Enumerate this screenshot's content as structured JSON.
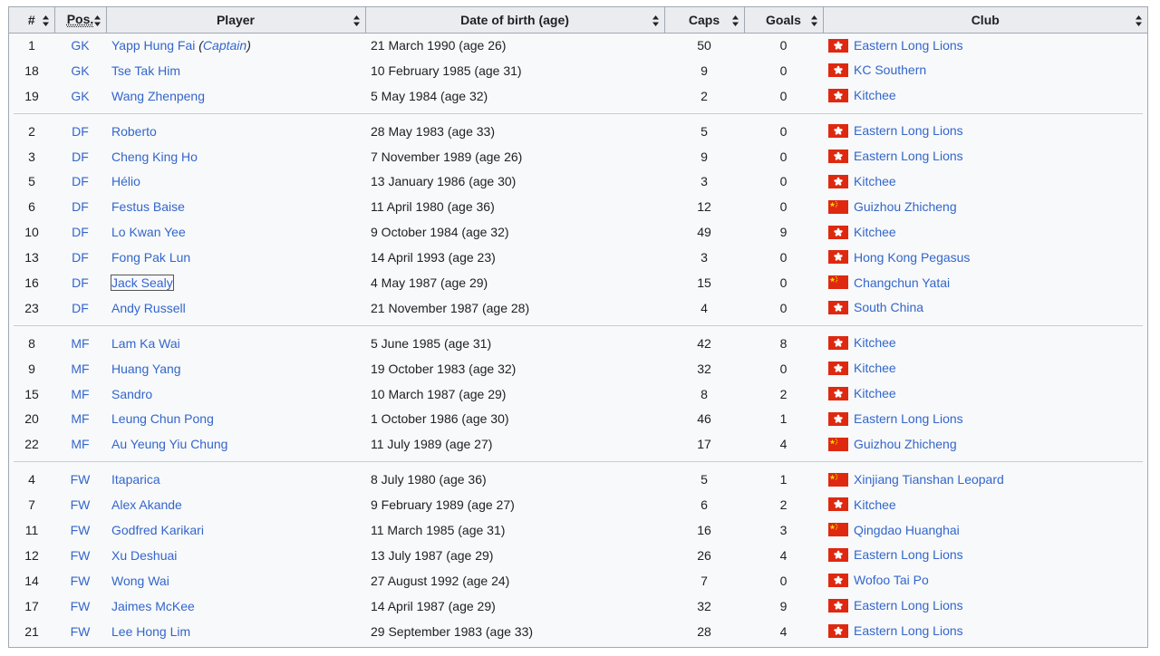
{
  "headers": {
    "num": "#",
    "pos": "Pos.",
    "player": "Player",
    "dob": "Date of birth (age)",
    "caps": "Caps",
    "goals": "Goals",
    "club": "Club"
  },
  "colors": {
    "link": "#3366cc",
    "header_bg": "#eaecf0",
    "border": "#a2a9b1",
    "flag_red": "#de2910",
    "flag_yellow": "#ffde00"
  },
  "groups": [
    [
      {
        "num": "1",
        "pos": "GK",
        "player": "Yapp Hung Fai",
        "note": "Captain",
        "dob": "21 March 1990 (age 26)",
        "caps": "50",
        "goals": "0",
        "flag": "hong-kong",
        "club": "Eastern Long Lions"
      },
      {
        "num": "18",
        "pos": "GK",
        "player": "Tse Tak Him",
        "dob": "10 February 1985 (age 31)",
        "caps": "9",
        "goals": "0",
        "flag": "hong-kong",
        "club": "KC Southern"
      },
      {
        "num": "19",
        "pos": "GK",
        "player": "Wang Zhenpeng",
        "dob": "5 May 1984 (age 32)",
        "caps": "2",
        "goals": "0",
        "flag": "hong-kong",
        "club": "Kitchee"
      }
    ],
    [
      {
        "num": "2",
        "pos": "DF",
        "player": "Roberto",
        "dob": "28 May 1983 (age 33)",
        "caps": "5",
        "goals": "0",
        "flag": "hong-kong",
        "club": "Eastern Long Lions"
      },
      {
        "num": "3",
        "pos": "DF",
        "player": "Cheng King Ho",
        "dob": "7 November 1989 (age 26)",
        "caps": "9",
        "goals": "0",
        "flag": "hong-kong",
        "club": "Eastern Long Lions"
      },
      {
        "num": "5",
        "pos": "DF",
        "player": "Hélio",
        "dob": "13 January 1986 (age 30)",
        "caps": "3",
        "goals": "0",
        "flag": "hong-kong",
        "club": "Kitchee"
      },
      {
        "num": "6",
        "pos": "DF",
        "player": "Festus Baise",
        "dob": "11 April 1980 (age 36)",
        "caps": "12",
        "goals": "0",
        "flag": "china",
        "club": "Guizhou Zhicheng"
      },
      {
        "num": "10",
        "pos": "DF",
        "player": "Lo Kwan Yee",
        "dob": "9 October 1984 (age 32)",
        "caps": "49",
        "goals": "9",
        "flag": "hong-kong",
        "club": "Kitchee"
      },
      {
        "num": "13",
        "pos": "DF",
        "player": "Fong Pak Lun",
        "dob": "14 April 1993 (age 23)",
        "caps": "3",
        "goals": "0",
        "flag": "hong-kong",
        "club": "Hong Kong Pegasus"
      },
      {
        "num": "16",
        "pos": "DF",
        "player": "Jack Sealy",
        "focused": true,
        "dob": "4 May 1987 (age 29)",
        "caps": "15",
        "goals": "0",
        "flag": "china",
        "club": "Changchun Yatai"
      },
      {
        "num": "23",
        "pos": "DF",
        "player": "Andy Russell",
        "dob": "21 November 1987 (age 28)",
        "caps": "4",
        "goals": "0",
        "flag": "hong-kong",
        "club": "South China"
      }
    ],
    [
      {
        "num": "8",
        "pos": "MF",
        "player": "Lam Ka Wai",
        "dob": "5 June 1985 (age 31)",
        "caps": "42",
        "goals": "8",
        "flag": "hong-kong",
        "club": "Kitchee"
      },
      {
        "num": "9",
        "pos": "MF",
        "player": "Huang Yang",
        "dob": "19 October 1983 (age 32)",
        "caps": "32",
        "goals": "0",
        "flag": "hong-kong",
        "club": "Kitchee"
      },
      {
        "num": "15",
        "pos": "MF",
        "player": "Sandro",
        "dob": "10 March 1987 (age 29)",
        "caps": "8",
        "goals": "2",
        "flag": "hong-kong",
        "club": "Kitchee"
      },
      {
        "num": "20",
        "pos": "MF",
        "player": "Leung Chun Pong",
        "dob": "1 October 1986 (age 30)",
        "caps": "46",
        "goals": "1",
        "flag": "hong-kong",
        "club": "Eastern Long Lions"
      },
      {
        "num": "22",
        "pos": "MF",
        "player": "Au Yeung Yiu Chung",
        "dob": "11 July 1989 (age 27)",
        "caps": "17",
        "goals": "4",
        "flag": "china",
        "club": "Guizhou Zhicheng"
      }
    ],
    [
      {
        "num": "4",
        "pos": "FW",
        "player": "Itaparica",
        "dob": "8 July 1980 (age 36)",
        "caps": "5",
        "goals": "1",
        "flag": "china",
        "club": "Xinjiang Tianshan Leopard"
      },
      {
        "num": "7",
        "pos": "FW",
        "player": "Alex Akande",
        "dob": "9 February 1989 (age 27)",
        "caps": "6",
        "goals": "2",
        "flag": "hong-kong",
        "club": "Kitchee"
      },
      {
        "num": "11",
        "pos": "FW",
        "player": "Godfred Karikari",
        "dob": "11 March 1985 (age 31)",
        "caps": "16",
        "goals": "3",
        "flag": "china",
        "club": "Qingdao Huanghai"
      },
      {
        "num": "12",
        "pos": "FW",
        "player": "Xu Deshuai",
        "dob": "13 July 1987 (age 29)",
        "caps": "26",
        "goals": "4",
        "flag": "hong-kong",
        "club": "Eastern Long Lions"
      },
      {
        "num": "14",
        "pos": "FW",
        "player": "Wong Wai",
        "dob": "27 August 1992 (age 24)",
        "caps": "7",
        "goals": "0",
        "flag": "hong-kong",
        "club": "Wofoo Tai Po"
      },
      {
        "num": "17",
        "pos": "FW",
        "player": "Jaimes McKee",
        "dob": "14 April 1987 (age 29)",
        "caps": "32",
        "goals": "9",
        "flag": "hong-kong",
        "club": "Eastern Long Lions"
      },
      {
        "num": "21",
        "pos": "FW",
        "player": "Lee Hong Lim",
        "dob": "29 September 1983 (age 33)",
        "caps": "28",
        "goals": "4",
        "flag": "hong-kong",
        "club": "Eastern Long Lions"
      }
    ]
  ]
}
